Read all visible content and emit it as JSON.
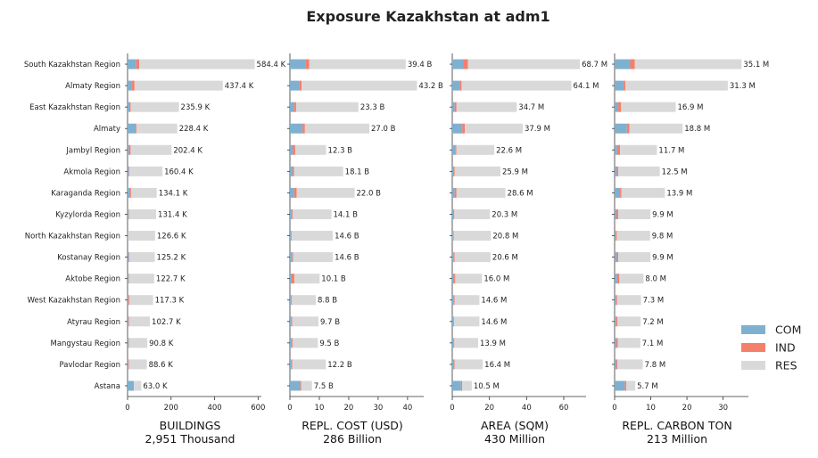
{
  "title": "Exposure Kazakhstan at adm1",
  "regions": [
    "South Kazakhstan Region",
    "Almaty Region",
    "East Kazakhstan Region",
    "Almaty",
    "Jambyl Region",
    "Akmola Region",
    "Karaganda Region",
    "Kyzylorda Region",
    "North Kazakhstan Region",
    "Kostanay Region",
    "Aktobe Region",
    "West Kazakhstan Region",
    "Atyrau Region",
    "Mangystau Region",
    "Pavlodar Region",
    "Astana"
  ],
  "legend": [
    {
      "label": "COM",
      "color": "#7fb0d0"
    },
    {
      "label": "IND",
      "color": "#f47f6b"
    },
    {
      "label": "RES",
      "color": "#d9d9d9"
    }
  ],
  "chart_data": [
    {
      "type": "bar",
      "xlabel": "BUILDINGS",
      "xsublabel": "2,951 Thousand",
      "xlim": [
        0,
        615
      ],
      "ticks": [
        0,
        200,
        400,
        600
      ],
      "tick_labels": [
        "0",
        "200",
        "400",
        "600"
      ],
      "series": [
        {
          "name": "COM",
          "values": [
            40,
            20,
            8,
            38,
            6,
            6,
            10,
            4,
            2,
            6,
            4,
            3,
            4,
            4,
            3,
            25
          ]
        },
        {
          "name": "IND",
          "values": [
            14,
            12,
            6,
            3,
            8,
            2,
            6,
            2,
            1,
            2,
            2,
            5,
            3,
            2,
            3,
            4
          ]
        },
        {
          "name": "RES",
          "values": [
            530.4,
            405.7,
            221.9,
            187.4,
            188.4,
            152.4,
            118.1,
            125.4,
            123.6,
            117.2,
            116.7,
            109.3,
            95.7,
            84.8,
            82.6,
            34.0
          ]
        }
      ],
      "value_labels": [
        "584.4 K",
        "437.4 K",
        "235.9 K",
        "228.4 K",
        "202.4 K",
        "160.4 K",
        "134.1 K",
        "131.4 K",
        "126.6 K",
        "125.2 K",
        "122.7 K",
        "117.3 K",
        "102.7 K",
        "90.8 K",
        "88.6 K",
        "63.0 K"
      ]
    },
    {
      "type": "bar",
      "xlabel": "REPL. COST (USD)",
      "xsublabel": "286 Billion",
      "xlim": [
        0,
        45.5
      ],
      "ticks": [
        0,
        10,
        20,
        30,
        40
      ],
      "tick_labels": [
        "0",
        "10",
        "20",
        "30",
        "40"
      ],
      "series": [
        {
          "name": "COM",
          "values": [
            5.2,
            3.3,
            1.4,
            4.3,
            0.9,
            0.9,
            1.4,
            0.7,
            0.4,
            0.8,
            0.6,
            0.4,
            0.5,
            0.7,
            0.6,
            3.5
          ]
        },
        {
          "name": "IND",
          "values": [
            1.4,
            0.7,
            0.7,
            0.8,
            0.9,
            0.5,
            0.9,
            0.3,
            0.2,
            0.3,
            0.9,
            0.3,
            0.3,
            0.3,
            0.2,
            0.3
          ]
        },
        {
          "name": "RES",
          "values": [
            32.8,
            39.2,
            21.2,
            21.9,
            10.5,
            16.7,
            19.7,
            13.1,
            14.0,
            13.5,
            8.6,
            8.1,
            8.9,
            8.5,
            11.4,
            3.7
          ]
        }
      ],
      "value_labels": [
        "39.4 B",
        "43.2 B",
        "23.3 B",
        "27.0 B",
        "12.3 B",
        "18.1 B",
        "22.0 B",
        "14.1 B",
        "14.6 B",
        "14.6 B",
        "10.1 B",
        "8.8 B",
        "9.7 B",
        "9.5 B",
        "12.2 B",
        "7.5 B"
      ]
    },
    {
      "type": "bar",
      "xlabel": "AREA (SQM)",
      "xsublabel": "430 Million",
      "xlim": [
        0,
        72
      ],
      "ticks": [
        0,
        20,
        40,
        60
      ],
      "tick_labels": [
        "0",
        "20",
        "40",
        "60"
      ],
      "series": [
        {
          "name": "COM",
          "values": [
            6.0,
            4.0,
            1.3,
            5.4,
            1.6,
            0.7,
            1.3,
            0.7,
            0.4,
            0.8,
            1.0,
            0.6,
            0.6,
            0.6,
            0.7,
            4.7
          ]
        },
        {
          "name": "IND",
          "values": [
            2.4,
            1.0,
            1.0,
            1.4,
            0.6,
            0.6,
            1.0,
            0.4,
            0.4,
            0.5,
            0.6,
            0.6,
            0.4,
            0.5,
            0.5,
            0.6
          ]
        },
        {
          "name": "RES",
          "values": [
            60.3,
            59.1,
            32.4,
            31.1,
            20.4,
            24.6,
            26.3,
            19.2,
            20.0,
            19.3,
            14.4,
            13.4,
            13.6,
            12.8,
            15.2,
            5.2
          ]
        }
      ],
      "value_labels": [
        "68.7 M",
        "64.1 M",
        "34.7 M",
        "37.9 M",
        "22.6 M",
        "25.9 M",
        "28.6 M",
        "20.3 M",
        "20.8 M",
        "20.6 M",
        "16.0 M",
        "14.6 M",
        "14.6 M",
        "13.9 M",
        "16.4 M",
        "10.5 M"
      ]
    },
    {
      "type": "bar",
      "xlabel": "REPL. CARBON TON",
      "xsublabel": "213 Million",
      "xlim": [
        0,
        37
      ],
      "ticks": [
        0,
        10,
        20,
        30
      ],
      "tick_labels": [
        "0",
        "10",
        "20",
        "30"
      ],
      "series": [
        {
          "name": "COM",
          "values": [
            4.3,
            2.5,
            1.0,
            3.4,
            0.7,
            0.6,
            1.5,
            0.5,
            0.3,
            0.6,
            0.7,
            0.4,
            0.4,
            0.5,
            0.5,
            2.8
          ]
        },
        {
          "name": "IND",
          "values": [
            1.3,
            0.5,
            0.8,
            0.7,
            0.8,
            0.4,
            0.4,
            0.5,
            0.3,
            0.4,
            0.6,
            0.3,
            0.4,
            0.4,
            0.3,
            0.4
          ]
        },
        {
          "name": "RES",
          "values": [
            29.5,
            28.3,
            15.1,
            14.7,
            10.2,
            11.5,
            12.0,
            8.9,
            9.2,
            8.9,
            6.7,
            6.6,
            6.4,
            6.2,
            7.0,
            2.5
          ]
        }
      ],
      "value_labels": [
        "35.1 M",
        "31.3 M",
        "16.9 M",
        "18.8 M",
        "11.7 M",
        "12.5 M",
        "13.9 M",
        "9.9 M",
        "9.8 M",
        "9.9 M",
        "8.0 M",
        "7.3 M",
        "7.2 M",
        "7.1 M",
        "7.8 M",
        "5.7 M"
      ]
    }
  ]
}
